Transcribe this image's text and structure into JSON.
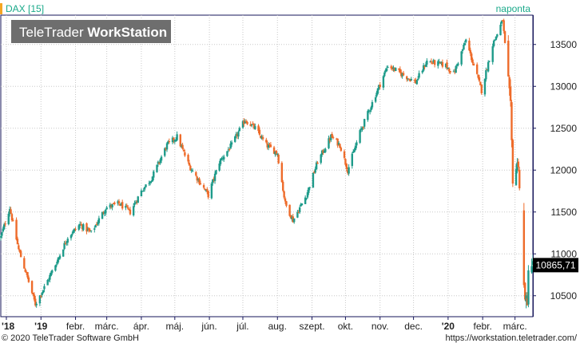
{
  "chart_data": {
    "type": "candlestick",
    "title": "DAX [15]",
    "period_label": "naponta",
    "watermark": "TeleTrader WorkStation",
    "watermark_parts": [
      "TeleTrader",
      "WorkStation"
    ],
    "last_value_label": "10865,71",
    "y_ticks": [
      10500,
      11000,
      11500,
      12000,
      12500,
      13000,
      13500
    ],
    "y_tick_labels": [
      "10500",
      "11000",
      "11500",
      "12000",
      "12500",
      "13000",
      "13500"
    ],
    "ylim": [
      10250,
      13850
    ],
    "x_tick_labels": [
      "'18",
      "'19",
      "febr.",
      "márc.",
      "ápr.",
      "máj.",
      "jún.",
      "júl.",
      "aug.",
      "szept.",
      "okt.",
      "nov.",
      "dec.",
      "'20",
      "febr.",
      "márc."
    ],
    "x_tick_dates": [
      "2018-12-01",
      "2019-01-01",
      "2019-02-01",
      "2019-03-01",
      "2019-04-01",
      "2019-05-01",
      "2019-06-01",
      "2019-07-01",
      "2019-08-01",
      "2019-09-01",
      "2019-10-01",
      "2019-11-01",
      "2019-12-01",
      "2020-01-01",
      "2020-02-01",
      "2020-03-01"
    ],
    "xlim": [
      "2018-11-26",
      "2020-03-17"
    ],
    "grid": true,
    "anchors": [
      [
        "2018-11-26",
        11200
      ],
      [
        "2018-12-04",
        11550
      ],
      [
        "2018-12-12",
        11050
      ],
      [
        "2018-12-18",
        10800
      ],
      [
        "2018-12-27",
        10400
      ],
      [
        "2019-01-04",
        10600
      ],
      [
        "2019-01-15",
        10900
      ],
      [
        "2019-01-25",
        11200
      ],
      [
        "2019-02-05",
        11350
      ],
      [
        "2019-02-15",
        11250
      ],
      [
        "2019-02-28",
        11550
      ],
      [
        "2019-03-12",
        11600
      ],
      [
        "2019-03-22",
        11500
      ],
      [
        "2019-04-01",
        11750
      ],
      [
        "2019-04-10",
        11900
      ],
      [
        "2019-04-24",
        12300
      ],
      [
        "2019-05-03",
        12400
      ],
      [
        "2019-05-14",
        12050
      ],
      [
        "2019-05-31",
        11700
      ],
      [
        "2019-06-10",
        12100
      ],
      [
        "2019-06-21",
        12300
      ],
      [
        "2019-07-03",
        12600
      ],
      [
        "2019-07-12",
        12500
      ],
      [
        "2019-07-22",
        12300
      ],
      [
        "2019-08-01",
        12200
      ],
      [
        "2019-08-08",
        11600
      ],
      [
        "2019-08-15",
        11400
      ],
      [
        "2019-08-27",
        11700
      ],
      [
        "2019-09-06",
        12100
      ],
      [
        "2019-09-18",
        12400
      ],
      [
        "2019-09-26",
        12300
      ],
      [
        "2019-10-03",
        12000
      ],
      [
        "2019-10-14",
        12450
      ],
      [
        "2019-10-28",
        12900
      ],
      [
        "2019-11-08",
        13250
      ],
      [
        "2019-11-20",
        13150
      ],
      [
        "2019-12-03",
        13050
      ],
      [
        "2019-12-13",
        13300
      ],
      [
        "2019-12-30",
        13250
      ],
      [
        "2020-01-06",
        13150
      ],
      [
        "2020-01-17",
        13550
      ],
      [
        "2020-01-31",
        12950
      ],
      [
        "2020-02-10",
        13500
      ],
      [
        "2020-02-19",
        13790
      ],
      [
        "2020-02-24",
        13050
      ],
      [
        "2020-02-26",
        12750
      ],
      [
        "2020-02-28",
        11900
      ],
      [
        "2020-03-04",
        12100
      ],
      [
        "2020-03-09",
        10600
      ],
      [
        "2020-03-12",
        10350
      ],
      [
        "2020-03-13",
        10865
      ]
    ]
  },
  "footer": {
    "copyright": "© 2020 TeleTrader Software GmbH",
    "url": "https://workstation.teletrader.com/"
  },
  "colors": {
    "up": "#1e9b8a",
    "down": "#ee6b2a",
    "axis": "#16165a",
    "grid": "#c8c8c8",
    "title": "#1aa98a",
    "watermark_bg": "#6e6e6e",
    "watermark_text": "#ffffff",
    "last_box_bg": "#000000",
    "last_box_text": "#ffffff",
    "accent": "#f5a623"
  }
}
